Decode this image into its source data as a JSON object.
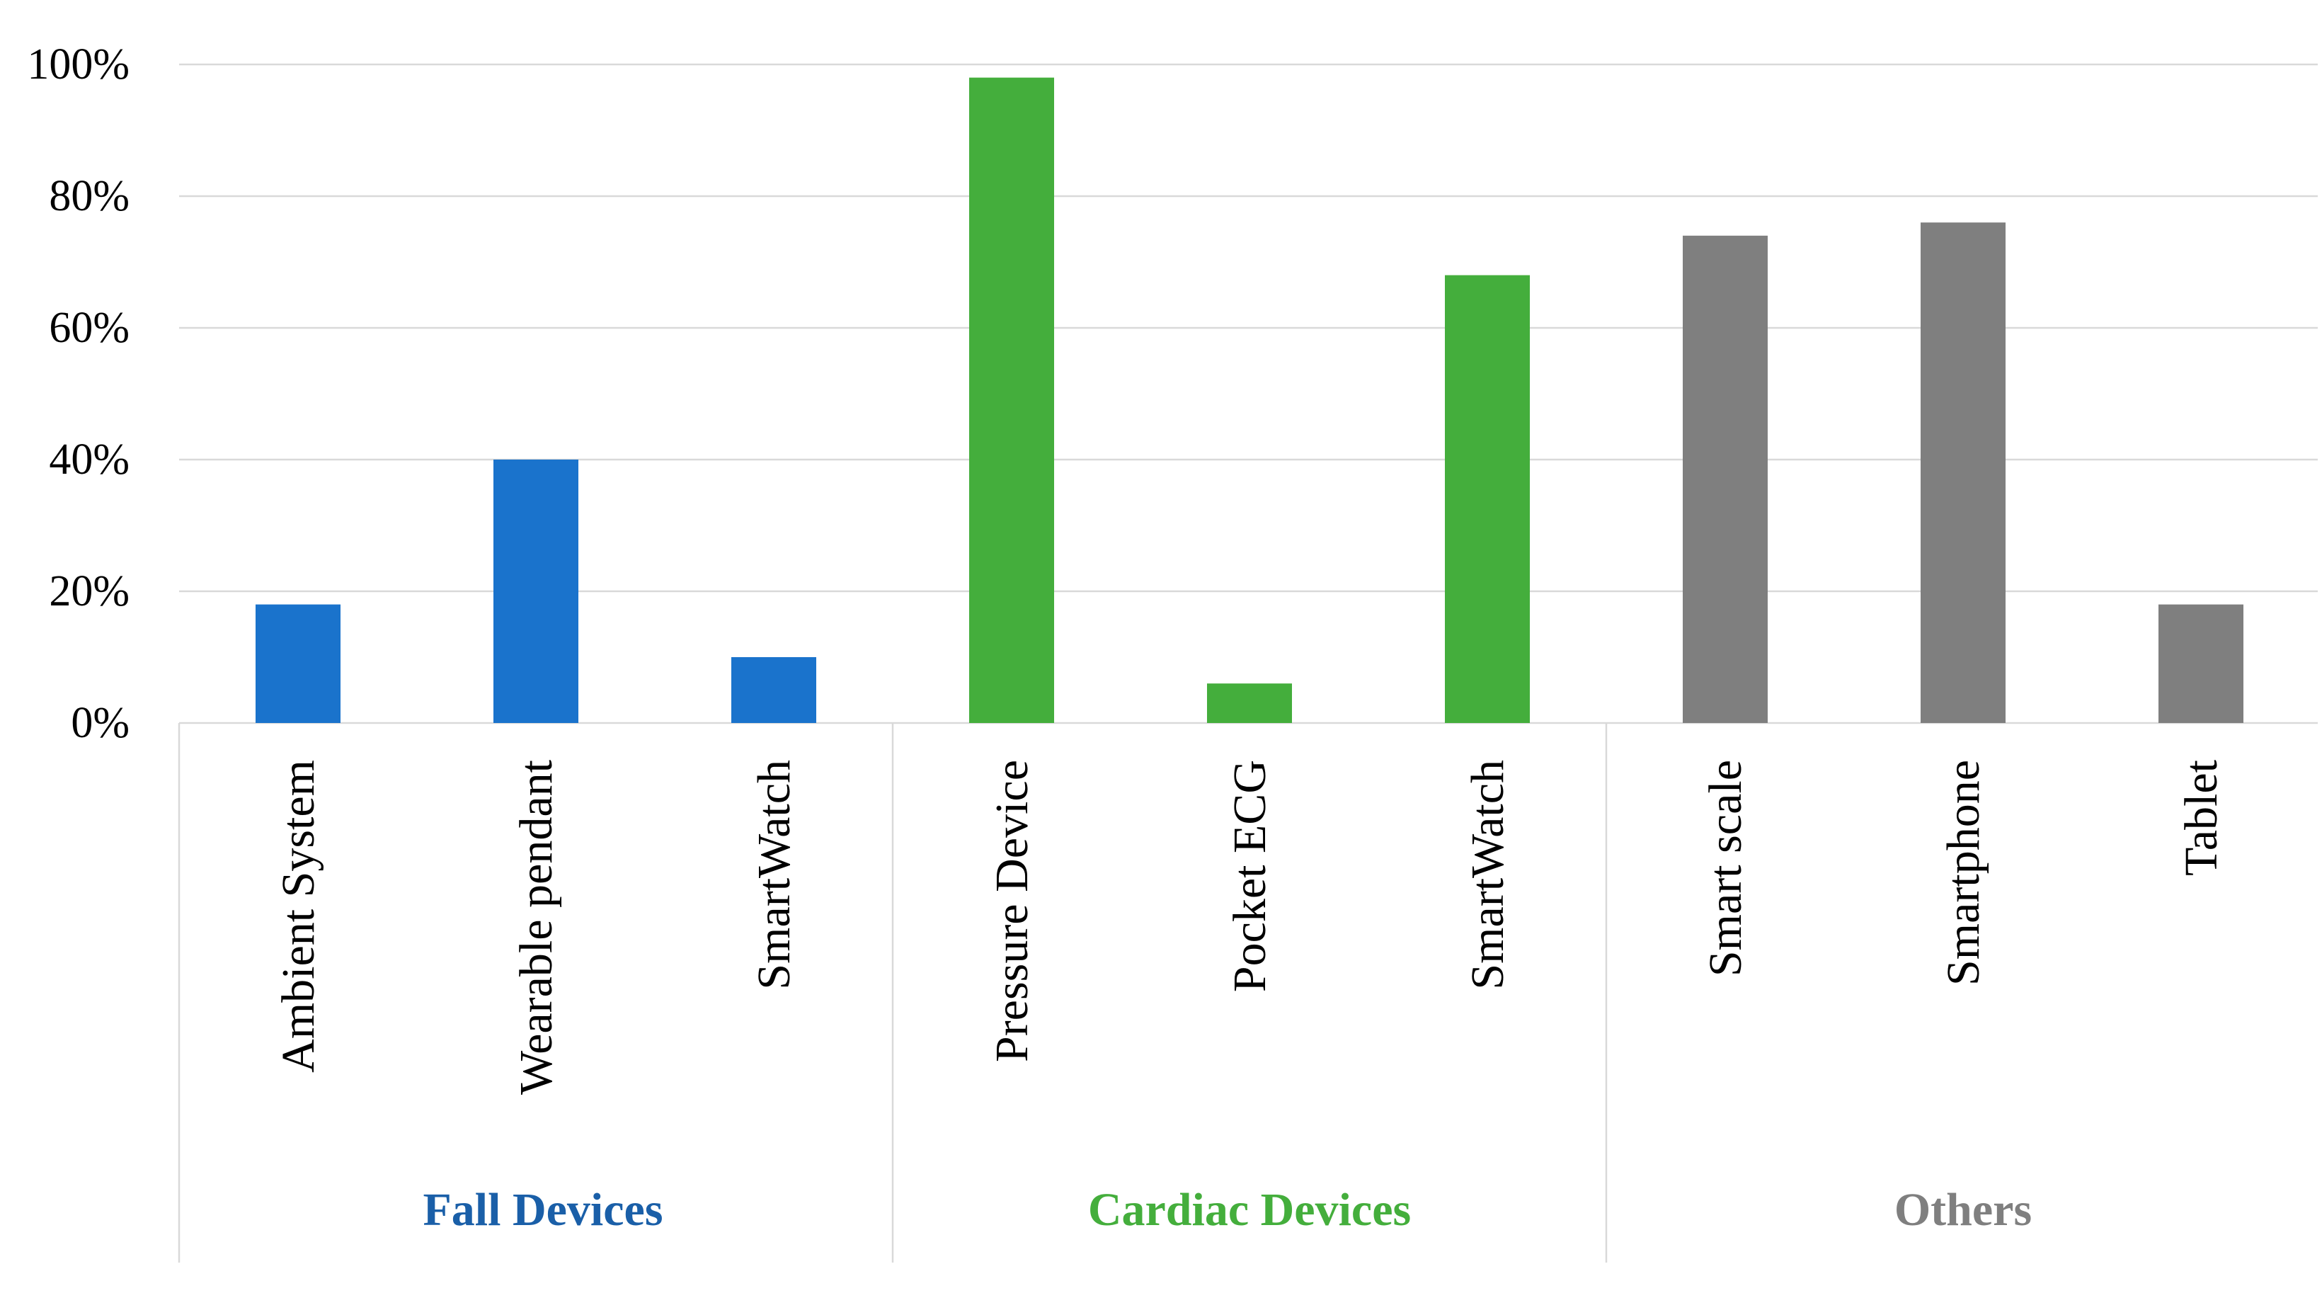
{
  "chart_data": {
    "type": "bar",
    "title": "",
    "xlabel": "",
    "ylabel": "",
    "ylim": [
      0,
      100
    ],
    "yticks": [
      0,
      20,
      40,
      60,
      80,
      100
    ],
    "ytick_labels": [
      "0%",
      "20%",
      "40%",
      "60%",
      "80%",
      "100%"
    ],
    "grid": true,
    "legend": "none",
    "groups": [
      {
        "name": "Fall Devices",
        "color": "#1a73cc",
        "categories": [
          "Ambient System",
          "Wearable pendant",
          "SmartWatch"
        ],
        "values": [
          18,
          40,
          10
        ]
      },
      {
        "name": "Cardiac Devices",
        "color": "#44ae3c",
        "categories": [
          "Pressure Device",
          "Pocket ECG",
          "SmartWatch"
        ],
        "values": [
          98,
          6,
          68
        ]
      },
      {
        "name": "Others",
        "color": "#7f7f7f",
        "categories": [
          "Smart scale",
          "Smartphone",
          "Tablet"
        ],
        "values": [
          74,
          76,
          18
        ]
      }
    ]
  }
}
